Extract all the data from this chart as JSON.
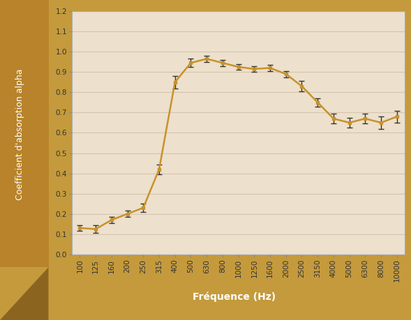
{
  "x_labels": [
    "100",
    "125",
    "160",
    "200",
    "250",
    "315",
    "400",
    "500",
    "630",
    "800",
    "1000",
    "1250",
    "1600",
    "2000",
    "2500",
    "3150",
    "4000",
    "5000",
    "6300",
    "8000",
    "10000"
  ],
  "x_values": [
    1,
    2,
    3,
    4,
    5,
    6,
    7,
    8,
    9,
    10,
    11,
    12,
    13,
    14,
    15,
    16,
    17,
    18,
    19,
    20,
    21
  ],
  "y_values": [
    0.13,
    0.125,
    0.17,
    0.2,
    0.23,
    0.42,
    0.85,
    0.945,
    0.965,
    0.945,
    0.925,
    0.915,
    0.92,
    0.89,
    0.83,
    0.75,
    0.67,
    0.65,
    0.67,
    0.65,
    0.68
  ],
  "y_err": [
    0.015,
    0.02,
    0.015,
    0.015,
    0.02,
    0.025,
    0.03,
    0.02,
    0.015,
    0.015,
    0.015,
    0.015,
    0.015,
    0.015,
    0.025,
    0.02,
    0.025,
    0.025,
    0.025,
    0.03,
    0.03
  ],
  "line_color": "#C8922A",
  "line_width": 1.8,
  "marker": "s",
  "marker_size": 3.5,
  "marker_color": "#C8922A",
  "ecolor": "#333333",
  "capsize": 3,
  "ylabel": "Coefficient d'absorption alpha",
  "xlabel": "Fréquence (Hz)",
  "ylim": [
    0,
    1.2
  ],
  "yticks": [
    0,
    0.1,
    0.2,
    0.3,
    0.4,
    0.5,
    0.6,
    0.7,
    0.8,
    0.9,
    1.0,
    1.1,
    1.2
  ],
  "plot_bg": "#EDE0CC",
  "outer_bg": "#C49A3C",
  "left_panel_color": "#B8832A",
  "bottom_panel_color": "#C49A3C",
  "grid_color": "#D4C4B0",
  "xlabel_fontsize": 10,
  "ylabel_fontsize": 9,
  "tick_fontsize": 7.5
}
